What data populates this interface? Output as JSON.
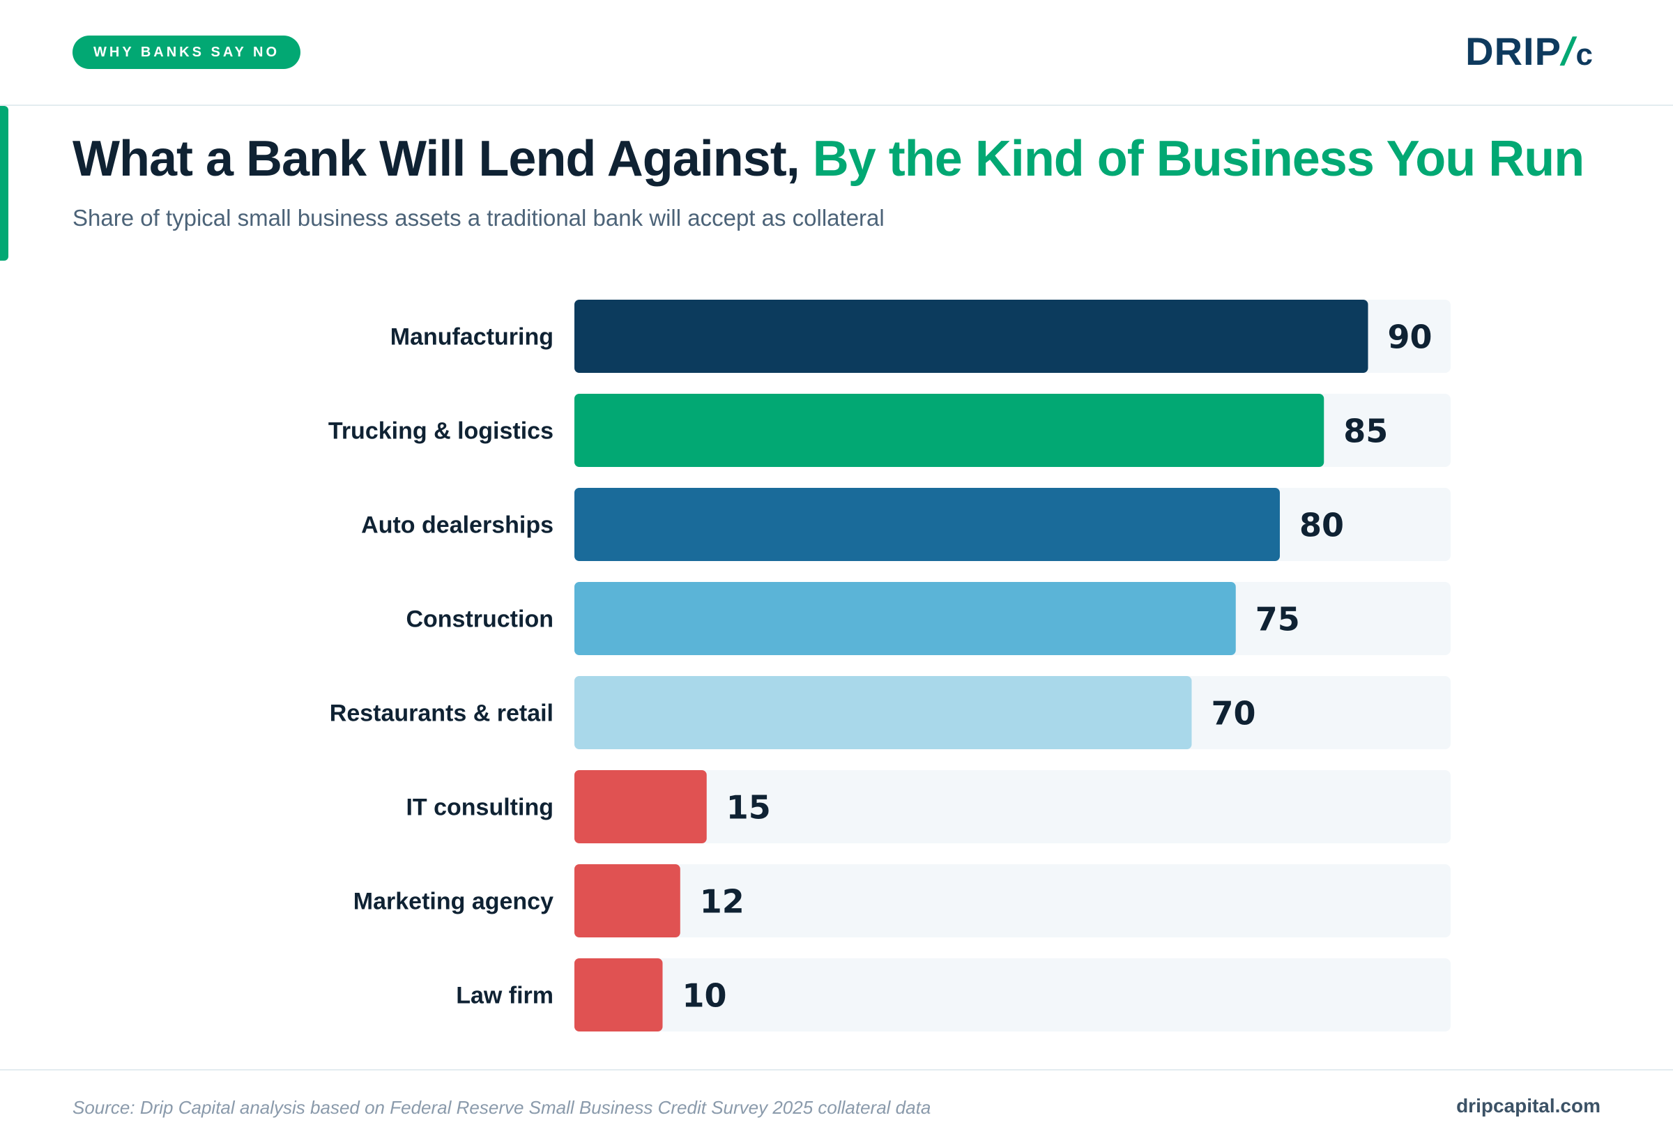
{
  "header": {
    "tag": "WHY BANKS SAY NO",
    "logo_text": "DRIP",
    "logo_slash": "/",
    "logo_c": "c"
  },
  "title": {
    "part1": "What a Bank Will Lend Against, ",
    "part2": "By the Kind of Business You Run"
  },
  "subtitle": "Share of typical small business assets a traditional bank will accept as collateral",
  "footer": {
    "source": "Source: Drip Capital analysis based on Federal Reserve Small Business Credit Survey 2025 collateral data",
    "site": "dripcapital.com"
  },
  "colors": {
    "accent": "#02a873",
    "navy": "#0e3a5e",
    "track": "#f3f7fa"
  },
  "chart_data": {
    "type": "bar",
    "orientation": "horizontal",
    "title": "What a Bank Will Lend Against, By the Kind of Business You Run",
    "subtitle": "Share of typical small business assets a traditional bank will accept as collateral",
    "categories": [
      "Manufacturing",
      "Trucking & logistics",
      "Auto dealerships",
      "Construction",
      "Restaurants & retail",
      "IT consulting",
      "Marketing agency",
      "Law firm"
    ],
    "values": [
      90,
      85,
      80,
      75,
      70,
      15,
      12,
      10
    ],
    "bar_colors": [
      "#0c3b5d",
      "#02a873",
      "#1a6b9a",
      "#5bb4d7",
      "#a9d8ea",
      "#e05252",
      "#e05252",
      "#e05252"
    ],
    "xlim": [
      0,
      100
    ],
    "grid": false,
    "legend": "none"
  }
}
